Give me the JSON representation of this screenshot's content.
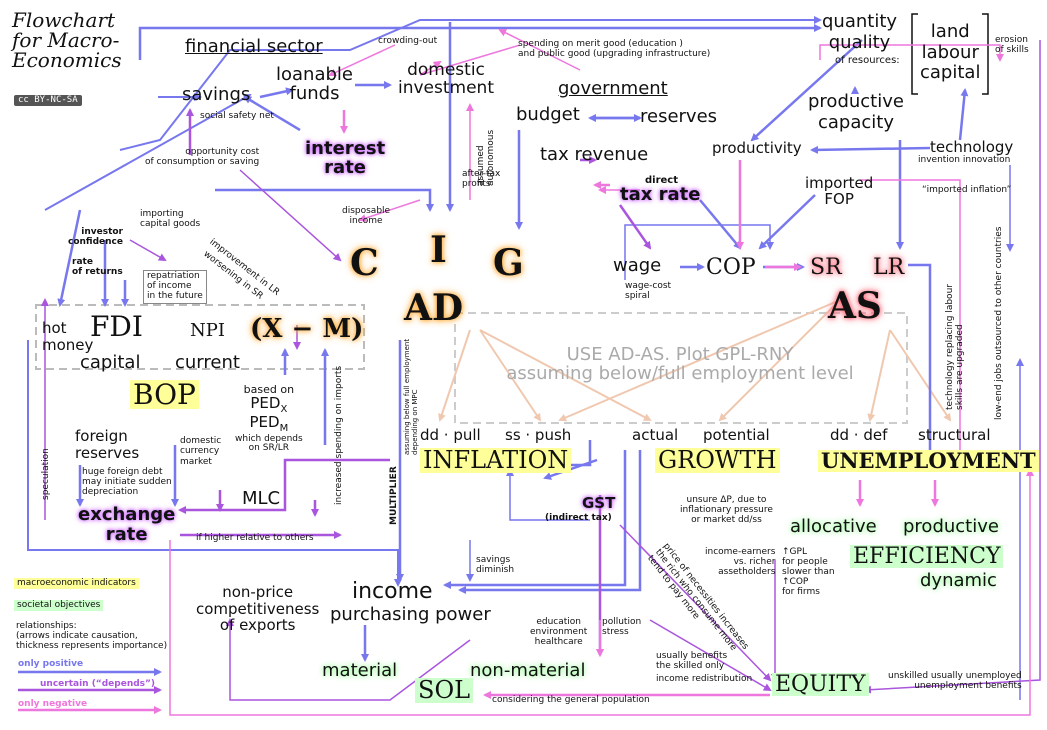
{
  "title": [
    "Flowchart",
    "for Macro-",
    "Economics"
  ],
  "license": "BY-NC-SA",
  "headers": {
    "financial_sector": "financial sector",
    "government": "government"
  },
  "nodes": {
    "savings": "savings",
    "loanable_funds": [
      "loanable",
      "funds"
    ],
    "domestic_investment": [
      "domestic",
      "investment"
    ],
    "interest_rate": [
      "interest",
      "rate"
    ],
    "budget": "budget",
    "reserves": "reserves",
    "tax_revenue": "tax revenue",
    "direct": "direct",
    "tax_rate": "tax rate",
    "quantity_quality": [
      "quantity",
      "quality"
    ],
    "of_resources": "of resources:",
    "factors": [
      "land",
      "labour",
      "capital"
    ],
    "productive_capacity": [
      "productive",
      "capacity"
    ],
    "productivity": "productivity",
    "technology": "technology",
    "invention_innovation": "invention innovation",
    "imported_fop": [
      "imported",
      "FOP"
    ],
    "C": "C",
    "I": "I",
    "G": "G",
    "AD": "AD",
    "wage": "wage",
    "cop": "COP",
    "sr": "SR",
    "lr": "LR",
    "as": "AS",
    "hot_money": [
      "hot",
      "money"
    ],
    "fdi": "FDI",
    "npi": "NPI",
    "xm": "(X − M)",
    "capital": "capital",
    "current": "current",
    "bop": "BOP",
    "overlay": [
      "USE AD-AS. Plot GPL-RNY",
      "assuming below/full employment level"
    ],
    "foreign_reserves": [
      "foreign",
      "reserves"
    ],
    "domestic_currency_market": [
      "domestic",
      "currency",
      "market"
    ],
    "ped": [
      "based on",
      "PED",
      "PED",
      "which depends",
      "on SR/LR"
    ],
    "ped_sub_x": "X",
    "ped_sub_m": "M",
    "dd_pull": "dd · pull",
    "ss_push": "ss · push",
    "inflation": "INFLATION",
    "actual": "actual",
    "potential": "potential",
    "growth": "GROWTH",
    "dd_def": "dd · def",
    "structural": "structural",
    "unemployment": "UNEMPLOYMENT",
    "mlc": "MLC",
    "exchange_rate": [
      "exchange",
      "rate"
    ],
    "gst": "GST",
    "indirect_tax": "(indirect tax)",
    "allocative": "allocative",
    "productive": "productive",
    "efficiency": "EFFICIENCY",
    "dynamic": "dynamic",
    "income": "income",
    "purchasing_power": "purchasing power",
    "non_price": [
      "non-price",
      "competitiveness",
      "of exports"
    ],
    "material": "material",
    "non_material": "non-material",
    "sol": "SOL",
    "equity": "EQUITY"
  },
  "annotations": {
    "crowding_out": "crowding-out",
    "merit_good": [
      "spending on merit good (education )",
      "and public good (upgrading infrastructure)"
    ],
    "social_safety_net": "social safety net",
    "opportunity_cost": [
      "opportunity cost",
      "of consumption or saving"
    ],
    "assumed_autonomous": [
      "assumed",
      "autonomous"
    ],
    "after_tax_profits": [
      "after-tax",
      "profits"
    ],
    "disposable_income": [
      "disposable",
      "income"
    ],
    "importing_capital_goods": [
      "importing",
      "capital goods"
    ],
    "investor_confidence": [
      "investor",
      "confidence"
    ],
    "rate_of_returns": [
      "rate",
      "of returns"
    ],
    "repatriation": [
      "repatriation",
      "of income",
      "in the future"
    ],
    "improvement_lr": "improvement in LR",
    "worsening_sr": "worsening in SR",
    "wage_cost_spiral": [
      "wage-cost",
      "spiral"
    ],
    "erosion_of_skills": [
      "erosion",
      "of skills"
    ],
    "imported_inflation": "“imported inflation”",
    "tech_replacing": [
      "technology replacing labour",
      "skills are upgraded"
    ],
    "low_end_jobs": "low-end jobs outsourced to other countries",
    "huge_foreign_debt": [
      "huge foreign debt",
      "may initiate sudden",
      "depreciation"
    ],
    "speculation": "speculation",
    "increased_spending": "increased spending on imports",
    "multiplier": "MULTIPLIER",
    "assuming_below_full": [
      "assuming below full employment",
      "depending on MPC"
    ],
    "if_higher": "if higher relative to others",
    "unsure_dp": [
      "unsure ΔP, due to",
      "inflationary pressure",
      "or market dd/ss"
    ],
    "savings_diminish": [
      "savings",
      "diminish"
    ],
    "income_earners": [
      "income-earners",
      "vs. richer",
      "assetholders"
    ],
    "gpl_for_people": [
      "↑GPL",
      "for people",
      "slower than",
      "↑COP",
      "for firms"
    ],
    "price_of_necessities": [
      "price of necessities increases",
      "the rich who consume more",
      "tend to pay more"
    ],
    "education_env": [
      "education",
      "environment",
      "healthcare"
    ],
    "pollution_stress": [
      "pollution",
      "stress"
    ],
    "usually_benefits": [
      "usually benefits",
      "the skilled only"
    ],
    "income_redistribution": "income redistribution",
    "considering_general": "considering the general population",
    "unskilled_unemployed": [
      "unskilled usually unemployed",
      "unemployment benefits"
    ]
  },
  "legend": {
    "macroeconomic_indicators": "macroeconomic indicators",
    "societal_objectives": "societal objectives",
    "relationships": [
      "relationships:",
      "(arrows indicate causation,",
      "thickness represents importance)"
    ],
    "only_positive": "only positive",
    "uncertain": "uncertain (“depends”)",
    "only_negative": "only negative"
  },
  "colors": {
    "positive": "#7777ee",
    "uncertain": "#aa55dd",
    "negative": "#ee77dd",
    "indicator_bg": "#ffff99",
    "objective_bg": "#ccffcc",
    "faint": "#f0c8b0"
  }
}
